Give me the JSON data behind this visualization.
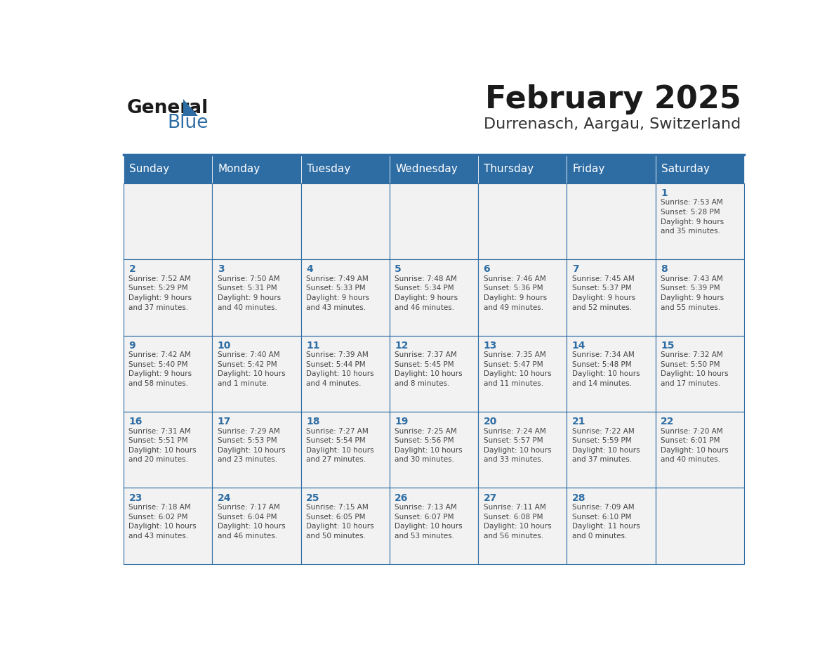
{
  "title": "February 2025",
  "subtitle": "Durrenasch, Aargau, Switzerland",
  "days_of_week": [
    "Sunday",
    "Monday",
    "Tuesday",
    "Wednesday",
    "Thursday",
    "Friday",
    "Saturday"
  ],
  "header_bg": "#2E6DA4",
  "header_text": "#FFFFFF",
  "cell_bg": "#F2F2F2",
  "border_color": "#2E6DA4",
  "day_number_color": "#2E6DA4",
  "info_text_color": "#444444",
  "title_color": "#1a1a1a",
  "subtitle_color": "#333333",
  "header_font_size": 11,
  "day_num_font_size": 10,
  "info_font_size": 7.5,
  "calendar_data": {
    "1": {
      "row": 0,
      "col": 6,
      "sunrise": "7:53 AM",
      "sunset": "5:28 PM",
      "daylight": "9 hours\nand 35 minutes."
    },
    "2": {
      "row": 1,
      "col": 0,
      "sunrise": "7:52 AM",
      "sunset": "5:29 PM",
      "daylight": "9 hours\nand 37 minutes."
    },
    "3": {
      "row": 1,
      "col": 1,
      "sunrise": "7:50 AM",
      "sunset": "5:31 PM",
      "daylight": "9 hours\nand 40 minutes."
    },
    "4": {
      "row": 1,
      "col": 2,
      "sunrise": "7:49 AM",
      "sunset": "5:33 PM",
      "daylight": "9 hours\nand 43 minutes."
    },
    "5": {
      "row": 1,
      "col": 3,
      "sunrise": "7:48 AM",
      "sunset": "5:34 PM",
      "daylight": "9 hours\nand 46 minutes."
    },
    "6": {
      "row": 1,
      "col": 4,
      "sunrise": "7:46 AM",
      "sunset": "5:36 PM",
      "daylight": "9 hours\nand 49 minutes."
    },
    "7": {
      "row": 1,
      "col": 5,
      "sunrise": "7:45 AM",
      "sunset": "5:37 PM",
      "daylight": "9 hours\nand 52 minutes."
    },
    "8": {
      "row": 1,
      "col": 6,
      "sunrise": "7:43 AM",
      "sunset": "5:39 PM",
      "daylight": "9 hours\nand 55 minutes."
    },
    "9": {
      "row": 2,
      "col": 0,
      "sunrise": "7:42 AM",
      "sunset": "5:40 PM",
      "daylight": "9 hours\nand 58 minutes."
    },
    "10": {
      "row": 2,
      "col": 1,
      "sunrise": "7:40 AM",
      "sunset": "5:42 PM",
      "daylight": "10 hours\nand 1 minute."
    },
    "11": {
      "row": 2,
      "col": 2,
      "sunrise": "7:39 AM",
      "sunset": "5:44 PM",
      "daylight": "10 hours\nand 4 minutes."
    },
    "12": {
      "row": 2,
      "col": 3,
      "sunrise": "7:37 AM",
      "sunset": "5:45 PM",
      "daylight": "10 hours\nand 8 minutes."
    },
    "13": {
      "row": 2,
      "col": 4,
      "sunrise": "7:35 AM",
      "sunset": "5:47 PM",
      "daylight": "10 hours\nand 11 minutes."
    },
    "14": {
      "row": 2,
      "col": 5,
      "sunrise": "7:34 AM",
      "sunset": "5:48 PM",
      "daylight": "10 hours\nand 14 minutes."
    },
    "15": {
      "row": 2,
      "col": 6,
      "sunrise": "7:32 AM",
      "sunset": "5:50 PM",
      "daylight": "10 hours\nand 17 minutes."
    },
    "16": {
      "row": 3,
      "col": 0,
      "sunrise": "7:31 AM",
      "sunset": "5:51 PM",
      "daylight": "10 hours\nand 20 minutes."
    },
    "17": {
      "row": 3,
      "col": 1,
      "sunrise": "7:29 AM",
      "sunset": "5:53 PM",
      "daylight": "10 hours\nand 23 minutes."
    },
    "18": {
      "row": 3,
      "col": 2,
      "sunrise": "7:27 AM",
      "sunset": "5:54 PM",
      "daylight": "10 hours\nand 27 minutes."
    },
    "19": {
      "row": 3,
      "col": 3,
      "sunrise": "7:25 AM",
      "sunset": "5:56 PM",
      "daylight": "10 hours\nand 30 minutes."
    },
    "20": {
      "row": 3,
      "col": 4,
      "sunrise": "7:24 AM",
      "sunset": "5:57 PM",
      "daylight": "10 hours\nand 33 minutes."
    },
    "21": {
      "row": 3,
      "col": 5,
      "sunrise": "7:22 AM",
      "sunset": "5:59 PM",
      "daylight": "10 hours\nand 37 minutes."
    },
    "22": {
      "row": 3,
      "col": 6,
      "sunrise": "7:20 AM",
      "sunset": "6:01 PM",
      "daylight": "10 hours\nand 40 minutes."
    },
    "23": {
      "row": 4,
      "col": 0,
      "sunrise": "7:18 AM",
      "sunset": "6:02 PM",
      "daylight": "10 hours\nand 43 minutes."
    },
    "24": {
      "row": 4,
      "col": 1,
      "sunrise": "7:17 AM",
      "sunset": "6:04 PM",
      "daylight": "10 hours\nand 46 minutes."
    },
    "25": {
      "row": 4,
      "col": 2,
      "sunrise": "7:15 AM",
      "sunset": "6:05 PM",
      "daylight": "10 hours\nand 50 minutes."
    },
    "26": {
      "row": 4,
      "col": 3,
      "sunrise": "7:13 AM",
      "sunset": "6:07 PM",
      "daylight": "10 hours\nand 53 minutes."
    },
    "27": {
      "row": 4,
      "col": 4,
      "sunrise": "7:11 AM",
      "sunset": "6:08 PM",
      "daylight": "10 hours\nand 56 minutes."
    },
    "28": {
      "row": 4,
      "col": 5,
      "sunrise": "7:09 AM",
      "sunset": "6:10 PM",
      "daylight": "11 hours\nand 0 minutes."
    }
  }
}
